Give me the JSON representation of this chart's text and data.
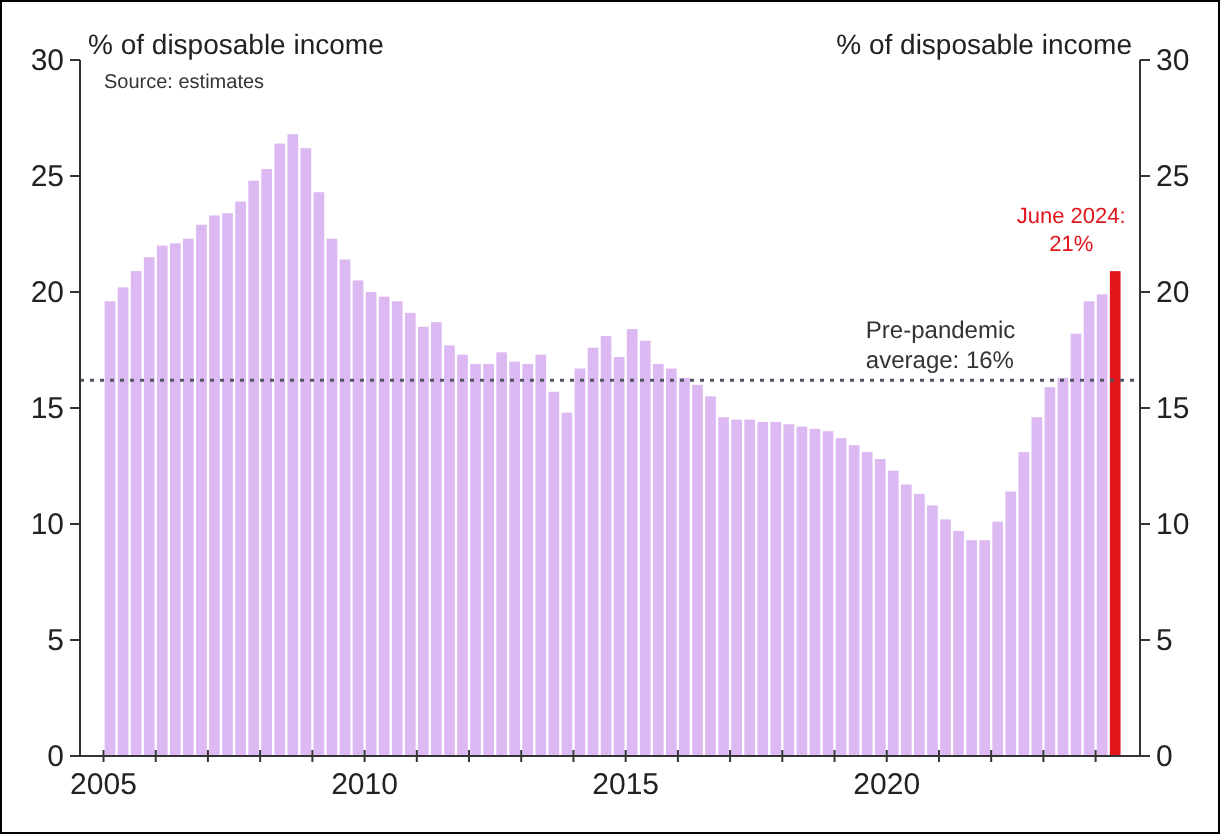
{
  "chart_data": {
    "type": "bar",
    "ylabel": "% of disposable income",
    "y2label": "% of disposable income",
    "x": [
      2005.125,
      2005.375,
      2005.625,
      2005.875,
      2006.125,
      2006.375,
      2006.625,
      2006.875,
      2007.125,
      2007.375,
      2007.625,
      2007.875,
      2008.125,
      2008.375,
      2008.625,
      2008.875,
      2009.125,
      2009.375,
      2009.625,
      2009.875,
      2010.125,
      2010.375,
      2010.625,
      2010.875,
      2011.125,
      2011.375,
      2011.625,
      2011.875,
      2012.125,
      2012.375,
      2012.625,
      2012.875,
      2013.125,
      2013.375,
      2013.625,
      2013.875,
      2014.125,
      2014.375,
      2014.625,
      2014.875,
      2015.125,
      2015.375,
      2015.625,
      2015.875,
      2016.125,
      2016.375,
      2016.625,
      2016.875,
      2017.125,
      2017.375,
      2017.625,
      2017.875,
      2018.125,
      2018.375,
      2018.625,
      2018.875,
      2019.125,
      2019.375,
      2019.625,
      2019.875,
      2020.125,
      2020.375,
      2020.625,
      2020.875,
      2021.125,
      2021.375,
      2021.625,
      2021.875,
      2022.125,
      2022.375,
      2022.625,
      2022.875,
      2023.125,
      2023.375,
      2023.625,
      2023.875,
      2024.125,
      2024.375
    ],
    "values": [
      19.6,
      20.2,
      20.9,
      21.5,
      22.0,
      22.1,
      22.3,
      22.9,
      23.3,
      23.4,
      23.9,
      24.8,
      25.3,
      26.4,
      26.8,
      26.2,
      24.3,
      22.3,
      21.4,
      20.5,
      20.0,
      19.8,
      19.6,
      19.1,
      18.5,
      18.7,
      17.7,
      17.3,
      16.9,
      16.9,
      17.4,
      17.0,
      16.9,
      17.3,
      15.7,
      14.8,
      16.7,
      17.6,
      18.1,
      17.2,
      18.4,
      17.9,
      16.9,
      16.7,
      16.3,
      16.0,
      15.5,
      14.6,
      14.5,
      14.5,
      14.4,
      14.4,
      14.3,
      14.2,
      14.1,
      14.0,
      13.7,
      13.4,
      13.1,
      12.8,
      12.3,
      11.7,
      11.3,
      10.8,
      10.2,
      9.7,
      9.3,
      9.3,
      10.1,
      11.4,
      13.1,
      14.6,
      15.9,
      16.3,
      18.2,
      19.6,
      19.9,
      20.9
    ],
    "colors": [
      "#dcb9f2",
      "#dcb9f2",
      "#dcb9f2",
      "#dcb9f2",
      "#dcb9f2",
      "#dcb9f2",
      "#dcb9f2",
      "#dcb9f2",
      "#dcb9f2",
      "#dcb9f2",
      "#dcb9f2",
      "#dcb9f2",
      "#dcb9f2",
      "#dcb9f2",
      "#dcb9f2",
      "#dcb9f2",
      "#dcb9f2",
      "#dcb9f2",
      "#dcb9f2",
      "#dcb9f2",
      "#dcb9f2",
      "#dcb9f2",
      "#dcb9f2",
      "#dcb9f2",
      "#dcb9f2",
      "#dcb9f2",
      "#dcb9f2",
      "#dcb9f2",
      "#dcb9f2",
      "#dcb9f2",
      "#dcb9f2",
      "#dcb9f2",
      "#dcb9f2",
      "#dcb9f2",
      "#dcb9f2",
      "#dcb9f2",
      "#dcb9f2",
      "#dcb9f2",
      "#dcb9f2",
      "#dcb9f2",
      "#dcb9f2",
      "#dcb9f2",
      "#dcb9f2",
      "#dcb9f2",
      "#dcb9f2",
      "#dcb9f2",
      "#dcb9f2",
      "#dcb9f2",
      "#dcb9f2",
      "#dcb9f2",
      "#dcb9f2",
      "#dcb9f2",
      "#dcb9f2",
      "#dcb9f2",
      "#dcb9f2",
      "#dcb9f2",
      "#dcb9f2",
      "#dcb9f2",
      "#dcb9f2",
      "#dcb9f2",
      "#dcb9f2",
      "#dcb9f2",
      "#dcb9f2",
      "#dcb9f2",
      "#dcb9f2",
      "#dcb9f2",
      "#dcb9f2",
      "#dcb9f2",
      "#dcb9f2",
      "#dcb9f2",
      "#dcb9f2",
      "#dcb9f2",
      "#dcb9f2",
      "#dcb9f2",
      "#dcb9f2",
      "#dcb9f2",
      "#dcb9f2",
      "#e0161b"
    ],
    "xlim": [
      2004.55,
      2024.85
    ],
    "xticks": [
      2005,
      {
        "value": 2006,
        "label": null
      },
      {
        "value": 2007,
        "label": null
      },
      {
        "value": 2008,
        "label": null
      },
      {
        "value": 2009,
        "label": null
      },
      2010,
      {
        "value": 2011,
        "label": null
      },
      {
        "value": 2012,
        "label": null
      },
      {
        "value": 2013,
        "label": null
      },
      {
        "value": 2014,
        "label": null
      },
      2015,
      {
        "value": 2016,
        "label": null
      },
      {
        "value": 2017,
        "label": null
      },
      {
        "value": 2018,
        "label": null
      },
      {
        "value": 2019,
        "label": null
      },
      2020,
      {
        "value": 2021,
        "label": null
      },
      {
        "value": 2022,
        "label": null
      },
      {
        "value": 2023,
        "label": null
      },
      {
        "value": 2024,
        "label": null
      }
    ],
    "ylim": [
      0,
      30
    ],
    "yticks": [
      0,
      5,
      10,
      15,
      20,
      25,
      30
    ],
    "y2lim": [
      0,
      30
    ],
    "y2ticks": [
      0,
      5,
      10,
      15,
      20,
      25,
      30
    ],
    "ref_lines": [
      {
        "axis": "y",
        "value": 16.2,
        "label": "Pre-pandemic average: 16%",
        "color": "#555566",
        "line_style": "dotted"
      }
    ],
    "annotations": [
      "Source: estimates",
      {
        "text": "June 2024: 21%",
        "x": 2024.375,
        "y": 20.9
      }
    ],
    "grid": false
  }
}
